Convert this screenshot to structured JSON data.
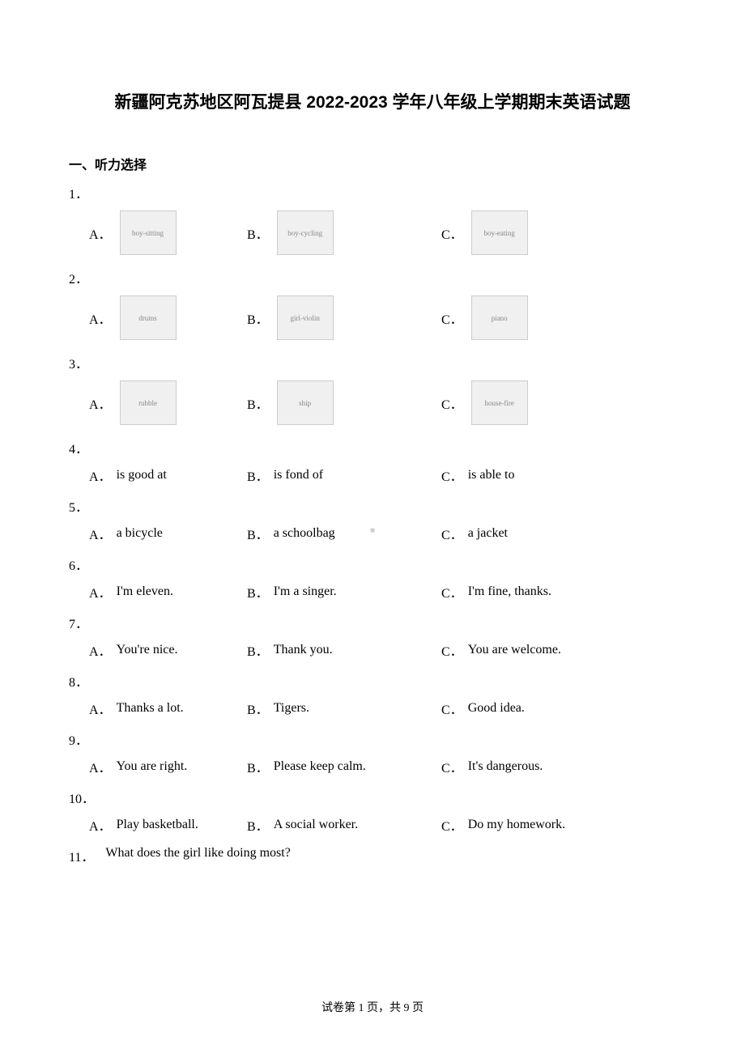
{
  "title": "新疆阿克苏地区阿瓦提县 2022-2023 学年八年级上学期期末英语试题",
  "section_header": "一、听力选择",
  "questions": [
    {
      "number": "1．",
      "type": "image",
      "options": [
        "A．",
        "B．",
        "C．"
      ],
      "images": [
        "boy-sitting",
        "boy-cycling",
        "boy-eating"
      ]
    },
    {
      "number": "2．",
      "type": "image",
      "options": [
        "A．",
        "B．",
        "C．"
      ],
      "images": [
        "drums",
        "girl-violin",
        "piano"
      ]
    },
    {
      "number": "3．",
      "type": "image",
      "options": [
        "A．",
        "B．",
        "C．"
      ],
      "images": [
        "rubble",
        "ship",
        "house-fire"
      ]
    },
    {
      "number": "4．",
      "type": "text",
      "options": [
        {
          "label": "A．",
          "text": "is good at"
        },
        {
          "label": "B．",
          "text": "is fond of"
        },
        {
          "label": "C．",
          "text": "is able to"
        }
      ]
    },
    {
      "number": "5．",
      "type": "text",
      "options": [
        {
          "label": "A．",
          "text": "a bicycle"
        },
        {
          "label": "B．",
          "text": "a schoolbag"
        },
        {
          "label": "C．",
          "text": "a jacket"
        }
      ]
    },
    {
      "number": "6．",
      "type": "text",
      "options": [
        {
          "label": "A．",
          "text": "I'm eleven."
        },
        {
          "label": "B．",
          "text": "I'm a singer."
        },
        {
          "label": "C．",
          "text": "I'm fine, thanks."
        }
      ]
    },
    {
      "number": "7．",
      "type": "text",
      "options": [
        {
          "label": "A．",
          "text": "You're nice."
        },
        {
          "label": "B．",
          "text": "Thank you."
        },
        {
          "label": "C．",
          "text": "You are welcome."
        }
      ]
    },
    {
      "number": "8．",
      "type": "text",
      "options": [
        {
          "label": "A．",
          "text": "Thanks a lot."
        },
        {
          "label": "B．",
          "text": "Tigers."
        },
        {
          "label": "C．",
          "text": "Good idea."
        }
      ]
    },
    {
      "number": "9．",
      "type": "text",
      "options": [
        {
          "label": "A．",
          "text": "You are right."
        },
        {
          "label": "B．",
          "text": "Please keep calm."
        },
        {
          "label": "C．",
          "text": "It's dangerous."
        }
      ]
    },
    {
      "number": "10．",
      "type": "text",
      "options": [
        {
          "label": "A．",
          "text": "Play basketball."
        },
        {
          "label": "B．",
          "text": "A social worker."
        },
        {
          "label": "C．",
          "text": "Do my homework."
        }
      ]
    }
  ],
  "q11": {
    "number": "11．",
    "text": "What does the girl like doing most?"
  },
  "footer_prefix": "试卷第 ",
  "footer_page": "1",
  "footer_middle": " 页，共 ",
  "footer_total": "9",
  "footer_suffix": " 页",
  "watermark": "■",
  "colors": {
    "background": "#ffffff",
    "text": "#000000",
    "watermark": "#cccccc"
  }
}
